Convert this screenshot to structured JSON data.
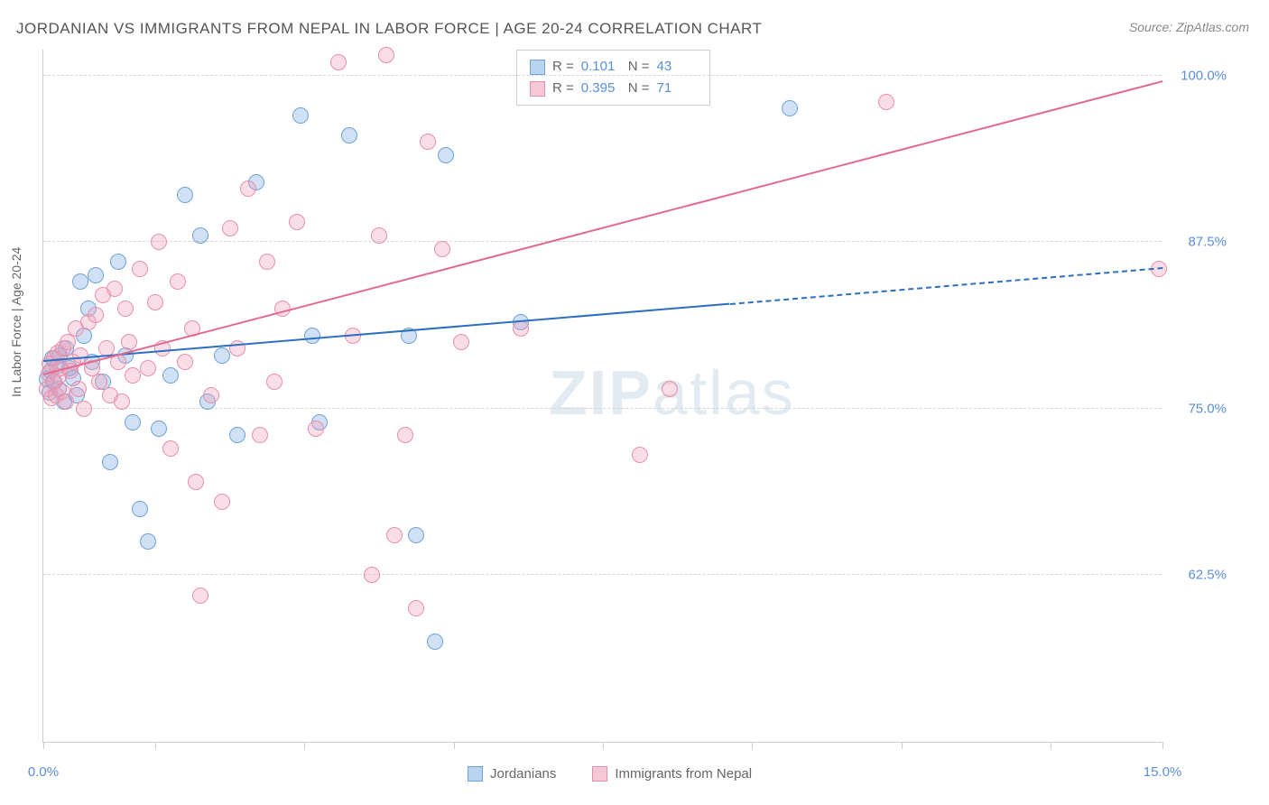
{
  "title": "JORDANIAN VS IMMIGRANTS FROM NEPAL IN LABOR FORCE | AGE 20-24 CORRELATION CHART",
  "source": "Source: ZipAtlas.com",
  "y_axis_label": "In Labor Force | Age 20-24",
  "watermark_a": "ZIP",
  "watermark_b": "atlas",
  "chart": {
    "type": "scatter",
    "background_color": "#ffffff",
    "grid_color": "#d5d5d5",
    "axis_color": "#cccccc",
    "label_color": "#5a8fd6",
    "xlim": [
      0,
      15
    ],
    "ylim": [
      50,
      102
    ],
    "x_ticks": [
      0,
      1.5,
      3.5,
      5.5,
      7.5,
      9.5,
      11.5,
      13.5,
      15
    ],
    "x_tick_labels": {
      "0": "0.0%",
      "15": "15.0%"
    },
    "y_gridlines": [
      62.5,
      75.0,
      87.5,
      100.0
    ],
    "y_tick_labels": [
      "62.5%",
      "75.0%",
      "87.5%",
      "100.0%"
    ],
    "marker_radius": 9,
    "marker_stroke": 1.5,
    "series": [
      {
        "name": "Jordanians",
        "fill": "rgba(120,170,225,0.35)",
        "stroke": "#6fa2d9",
        "swatch_fill": "#b9d4ef",
        "swatch_border": "#6fa2d9",
        "R": "0.101",
        "N": "43",
        "trend": {
          "x1": 0,
          "y1": 78.5,
          "x2": 15,
          "y2": 85.5,
          "color": "#2c6fc2",
          "dash_from_x": 9.2
        },
        "points": [
          [
            0.05,
            77.2
          ],
          [
            0.08,
            76.2
          ],
          [
            0.1,
            77.8
          ],
          [
            0.12,
            78.8
          ],
          [
            0.15,
            77.0
          ],
          [
            0.18,
            78.2
          ],
          [
            0.2,
            76.5
          ],
          [
            0.22,
            79.0
          ],
          [
            0.28,
            75.5
          ],
          [
            0.3,
            79.5
          ],
          [
            0.35,
            78.0
          ],
          [
            0.4,
            77.3
          ],
          [
            0.45,
            76.0
          ],
          [
            0.5,
            84.5
          ],
          [
            0.55,
            80.5
          ],
          [
            0.6,
            82.5
          ],
          [
            0.65,
            78.5
          ],
          [
            0.7,
            85.0
          ],
          [
            0.8,
            77.0
          ],
          [
            0.9,
            71.0
          ],
          [
            1.0,
            86.0
          ],
          [
            1.1,
            79.0
          ],
          [
            1.2,
            74.0
          ],
          [
            1.3,
            67.5
          ],
          [
            1.4,
            65.0
          ],
          [
            1.55,
            73.5
          ],
          [
            1.7,
            77.5
          ],
          [
            1.9,
            91.0
          ],
          [
            2.1,
            88.0
          ],
          [
            2.2,
            75.5
          ],
          [
            2.4,
            79.0
          ],
          [
            2.6,
            73.0
          ],
          [
            2.85,
            92.0
          ],
          [
            3.45,
            97.0
          ],
          [
            3.6,
            80.5
          ],
          [
            3.7,
            74.0
          ],
          [
            4.1,
            95.5
          ],
          [
            4.9,
            80.5
          ],
          [
            5.0,
            65.5
          ],
          [
            5.25,
            57.5
          ],
          [
            5.4,
            94.0
          ],
          [
            6.4,
            81.5
          ],
          [
            10.0,
            97.5
          ]
        ]
      },
      {
        "name": "Immigrants from Nepal",
        "fill": "rgba(240,160,185,0.35)",
        "stroke": "#e98fab",
        "swatch_fill": "#f6c8d6",
        "swatch_border": "#e98fab",
        "R": "0.395",
        "N": "71",
        "trend": {
          "x1": 0,
          "y1": 77.5,
          "x2": 15,
          "y2": 99.5,
          "color": "#e36a8f",
          "dash_from_x": 15
        },
        "points": [
          [
            0.05,
            76.5
          ],
          [
            0.07,
            77.6
          ],
          [
            0.09,
            78.4
          ],
          [
            0.11,
            75.8
          ],
          [
            0.13,
            77.0
          ],
          [
            0.15,
            78.8
          ],
          [
            0.17,
            76.0
          ],
          [
            0.19,
            79.2
          ],
          [
            0.21,
            77.4
          ],
          [
            0.23,
            78.0
          ],
          [
            0.25,
            76.3
          ],
          [
            0.27,
            79.5
          ],
          [
            0.3,
            75.5
          ],
          [
            0.33,
            80.0
          ],
          [
            0.36,
            77.8
          ],
          [
            0.4,
            78.5
          ],
          [
            0.43,
            81.0
          ],
          [
            0.47,
            76.5
          ],
          [
            0.5,
            79.0
          ],
          [
            0.55,
            75.0
          ],
          [
            0.6,
            81.5
          ],
          [
            0.65,
            78.0
          ],
          [
            0.7,
            82.0
          ],
          [
            0.75,
            77.0
          ],
          [
            0.8,
            83.5
          ],
          [
            0.85,
            79.5
          ],
          [
            0.9,
            76.0
          ],
          [
            0.95,
            84.0
          ],
          [
            1.0,
            78.5
          ],
          [
            1.05,
            75.5
          ],
          [
            1.1,
            82.5
          ],
          [
            1.15,
            80.0
          ],
          [
            1.2,
            77.5
          ],
          [
            1.3,
            85.5
          ],
          [
            1.4,
            78.0
          ],
          [
            1.5,
            83.0
          ],
          [
            1.55,
            87.5
          ],
          [
            1.6,
            79.5
          ],
          [
            1.7,
            72.0
          ],
          [
            1.8,
            84.5
          ],
          [
            1.9,
            78.5
          ],
          [
            2.0,
            81.0
          ],
          [
            2.05,
            69.5
          ],
          [
            2.1,
            61.0
          ],
          [
            2.25,
            76.0
          ],
          [
            2.4,
            68.0
          ],
          [
            2.5,
            88.5
          ],
          [
            2.6,
            79.5
          ],
          [
            2.75,
            91.5
          ],
          [
            2.9,
            73.0
          ],
          [
            3.0,
            86.0
          ],
          [
            3.1,
            77.0
          ],
          [
            3.2,
            82.5
          ],
          [
            3.4,
            89.0
          ],
          [
            3.65,
            73.5
          ],
          [
            3.95,
            101.0
          ],
          [
            4.15,
            80.5
          ],
          [
            4.4,
            62.5
          ],
          [
            4.5,
            88.0
          ],
          [
            4.6,
            101.5
          ],
          [
            4.7,
            65.5
          ],
          [
            4.85,
            73.0
          ],
          [
            5.0,
            60.0
          ],
          [
            5.15,
            95.0
          ],
          [
            5.35,
            87.0
          ],
          [
            5.6,
            80.0
          ],
          [
            6.4,
            81.0
          ],
          [
            8.0,
            71.5
          ],
          [
            8.4,
            76.5
          ],
          [
            11.3,
            98.0
          ],
          [
            14.95,
            85.5
          ]
        ]
      }
    ]
  },
  "bottom_legend": {
    "series1": "Jordanians",
    "series2": "Immigrants from Nepal"
  },
  "stats_labels": {
    "R": "R =",
    "N": "N ="
  }
}
